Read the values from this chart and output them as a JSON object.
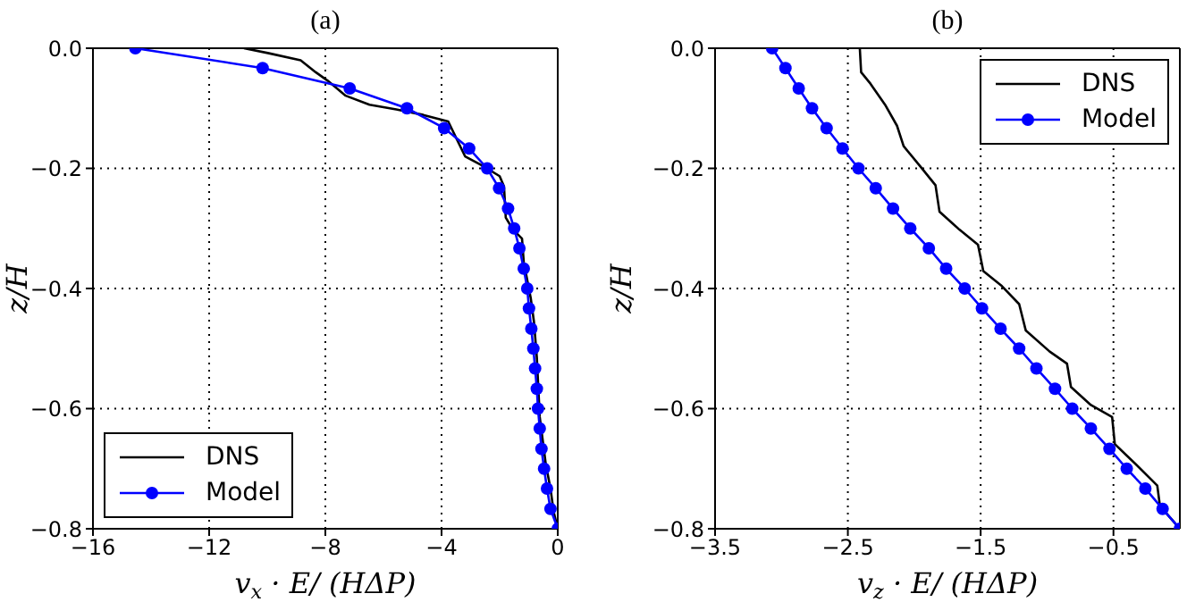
{
  "chart_data": [
    {
      "type": "line",
      "title": "(a)",
      "xlabel": "v$_{x}$ · E/ (HΔP)",
      "ylabel": "z/H",
      "xlim": [
        -16,
        0
      ],
      "xticks": [
        -16,
        -12,
        -8,
        -4,
        0
      ],
      "ylim": [
        -0.8,
        0
      ],
      "yticks": [
        {
          "value": 0,
          "label": "0.0"
        },
        {
          "value": -0.2,
          "label": "−0.2"
        },
        {
          "value": -0.4,
          "label": "−0.4"
        },
        {
          "value": -0.6,
          "label": "−0.6"
        },
        {
          "value": -0.8,
          "label": "−0.8"
        }
      ],
      "grid": true,
      "legend": "bottom left",
      "line_style": "solid",
      "series": [
        {
          "name": "DNS",
          "color": "#000000",
          "marker": "none",
          "x": [
            -10.8,
            -9.98,
            -8.85,
            -8.33,
            -7.92,
            -7.3,
            -6.48,
            -5.56,
            -4.63,
            -3.77,
            -3.5,
            -3.19,
            -2.57,
            -2.0,
            -1.85,
            -1.79,
            -1.54,
            -1.23,
            -1.17,
            -0.93,
            -0.82,
            -0.72,
            -0.62,
            -0.41,
            -0.25,
            -0.14,
            0
          ],
          "values": [
            0,
            -0.008,
            -0.02,
            -0.04,
            -0.054,
            -0.079,
            -0.094,
            -0.102,
            -0.111,
            -0.122,
            -0.149,
            -0.18,
            -0.196,
            -0.213,
            -0.23,
            -0.282,
            -0.302,
            -0.317,
            -0.356,
            -0.416,
            -0.455,
            -0.515,
            -0.614,
            -0.693,
            -0.733,
            -0.772,
            -0.8
          ]
        },
        {
          "name": "Model",
          "color": "#0000ff",
          "marker": "circle",
          "x": [
            -14.54,
            -10.16,
            -7.16,
            -5.19,
            -3.91,
            -3.05,
            -2.43,
            -2.02,
            -1.71,
            -1.5,
            -1.32,
            -1.17,
            -1.05,
            -0.99,
            -0.91,
            -0.84,
            -0.78,
            -0.72,
            -0.68,
            -0.62,
            -0.56,
            -0.47,
            -0.37,
            -0.25,
            0
          ],
          "values": [
            0,
            -0.033,
            -0.067,
            -0.1,
            -0.133,
            -0.167,
            -0.2,
            -0.233,
            -0.267,
            -0.3,
            -0.333,
            -0.367,
            -0.4,
            -0.433,
            -0.467,
            -0.5,
            -0.533,
            -0.567,
            -0.6,
            -0.633,
            -0.667,
            -0.7,
            -0.733,
            -0.767,
            -0.8
          ]
        }
      ]
    },
    {
      "type": "line",
      "title": "(b)",
      "xlabel": "v$_{z}$ · E/ (HΔP)",
      "ylabel": "z/H",
      "xlim": [
        -3.5,
        0
      ],
      "xticks": [
        -3.5,
        -2.5,
        -1.5,
        -0.5
      ],
      "ylim": [
        -0.8,
        0
      ],
      "yticks": [
        {
          "value": 0,
          "label": "0.0"
        },
        {
          "value": -0.2,
          "label": "−0.2"
        },
        {
          "value": -0.4,
          "label": "−0.4"
        },
        {
          "value": -0.6,
          "label": "−0.6"
        },
        {
          "value": -0.8,
          "label": "−0.8"
        }
      ],
      "grid": true,
      "legend": "top right",
      "line_style": "solid",
      "series": [
        {
          "name": "DNS",
          "color": "#000000",
          "marker": "none",
          "x": [
            -2.41,
            -2.4,
            -2.33,
            -2.22,
            -2.13,
            -2.08,
            -1.95,
            -1.84,
            -1.81,
            -1.66,
            -1.52,
            -1.48,
            -1.34,
            -1.21,
            -1.16,
            -0.98,
            -0.85,
            -0.82,
            -0.67,
            -0.51,
            -0.49,
            -0.33,
            -0.17,
            -0.15,
            0
          ],
          "values": [
            0,
            -0.04,
            -0.059,
            -0.094,
            -0.129,
            -0.163,
            -0.198,
            -0.228,
            -0.272,
            -0.302,
            -0.327,
            -0.371,
            -0.396,
            -0.426,
            -0.47,
            -0.505,
            -0.525,
            -0.564,
            -0.594,
            -0.614,
            -0.659,
            -0.693,
            -0.728,
            -0.762,
            -0.8
          ]
        },
        {
          "name": "Model",
          "color": "#0000ff",
          "marker": "circle",
          "x": [
            -3.07,
            -2.97,
            -2.87,
            -2.77,
            -2.66,
            -2.54,
            -2.42,
            -2.29,
            -2.16,
            -2.03,
            -1.89,
            -1.76,
            -1.62,
            -1.49,
            -1.35,
            -1.21,
            -1.08,
            -0.94,
            -0.81,
            -0.67,
            -0.53,
            -0.4,
            -0.26,
            -0.13,
            0
          ],
          "values": [
            0,
            -0.033,
            -0.067,
            -0.1,
            -0.133,
            -0.167,
            -0.2,
            -0.233,
            -0.267,
            -0.3,
            -0.333,
            -0.367,
            -0.4,
            -0.433,
            -0.467,
            -0.5,
            -0.533,
            -0.567,
            -0.6,
            -0.633,
            -0.667,
            -0.7,
            -0.733,
            -0.767,
            -0.8
          ]
        }
      ]
    }
  ]
}
